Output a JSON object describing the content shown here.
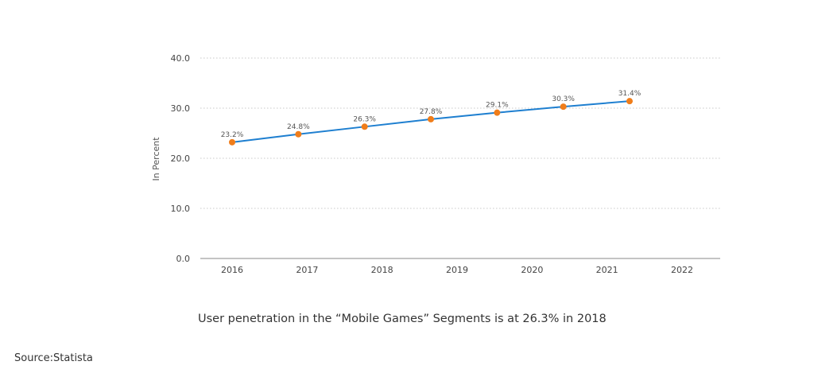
{
  "chart_data": {
    "type": "line",
    "categories": [
      "2016",
      "2017",
      "2018",
      "2019",
      "2020",
      "2021",
      "2022"
    ],
    "series": [
      {
        "values": [
          23.2,
          24.8,
          26.3,
          27.8,
          29.1,
          30.3,
          31.4
        ],
        "data_labels": [
          "23.2%",
          "24.8%",
          "26.3%",
          "27.8%",
          "29.1%",
          "30.3%",
          "31.4%"
        ],
        "line_color": "#1e7fd0",
        "marker_color": "#f07d1a"
      }
    ],
    "y_ticks": [
      "0.0",
      "10.0",
      "20.0",
      "30.0",
      "40.0"
    ],
    "ylim": [
      0,
      40
    ],
    "ylabel": "In Percent",
    "xlabel": "",
    "grid": true,
    "grid_color": "#c8c8c8"
  },
  "caption": "User penetration in the “Mobile Games” Segments is at 26.3% in 2018",
  "source": "Source:Statista"
}
